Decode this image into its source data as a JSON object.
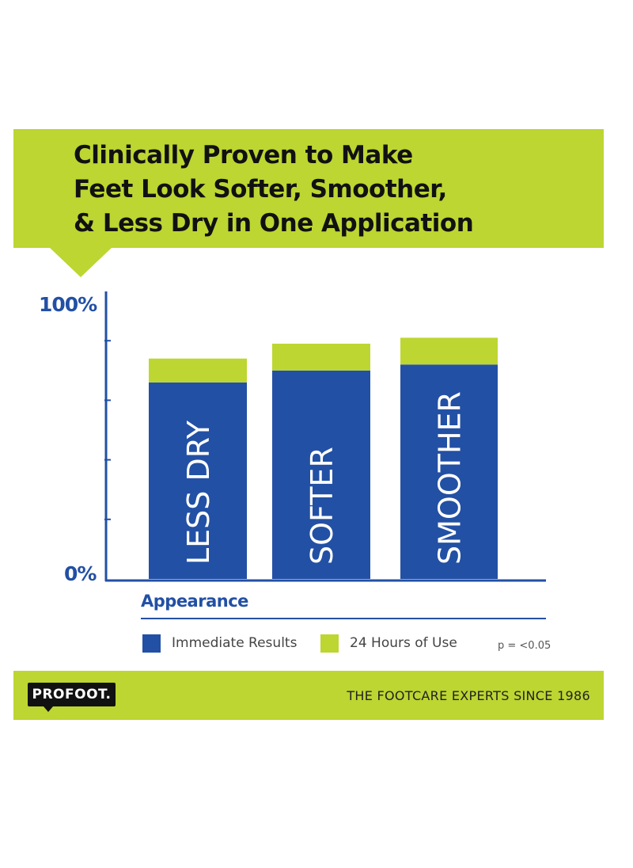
{
  "header": {
    "title_lines": [
      "Clinically Proven to Make",
      "Feet Look Softer, Smoother,",
      "& Less Dry in One Application"
    ]
  },
  "chart_data": {
    "type": "bar",
    "stacked": true,
    "title": "Clinically Proven to Make Feet Look Softer, Smoother, & Less Dry in One Application",
    "xlabel": "Appearance",
    "ylabel": "",
    "ylim": [
      0,
      100
    ],
    "y_tick_labels": [
      "0%",
      "100%"
    ],
    "y_minor_ticks": [
      20,
      40,
      60,
      80
    ],
    "categories": [
      "LESS DRY",
      "SOFTER",
      "SMOOTHER"
    ],
    "series": [
      {
        "name": "Immediate Results",
        "color": "#2250a4",
        "values": [
          66,
          70,
          72
        ]
      },
      {
        "name": "24 Hours of Use",
        "color": "#bdd631",
        "values": [
          8,
          9,
          9
        ]
      }
    ],
    "annotation": "p = <0.05",
    "legend_position": "bottom",
    "grid": false
  },
  "footer": {
    "logo_text": "PROFOOT.",
    "tagline": "THE FOOTCARE EXPERTS SINCE 1986"
  },
  "colors": {
    "brand_green": "#bdd631",
    "brand_blue": "#2250a4"
  }
}
